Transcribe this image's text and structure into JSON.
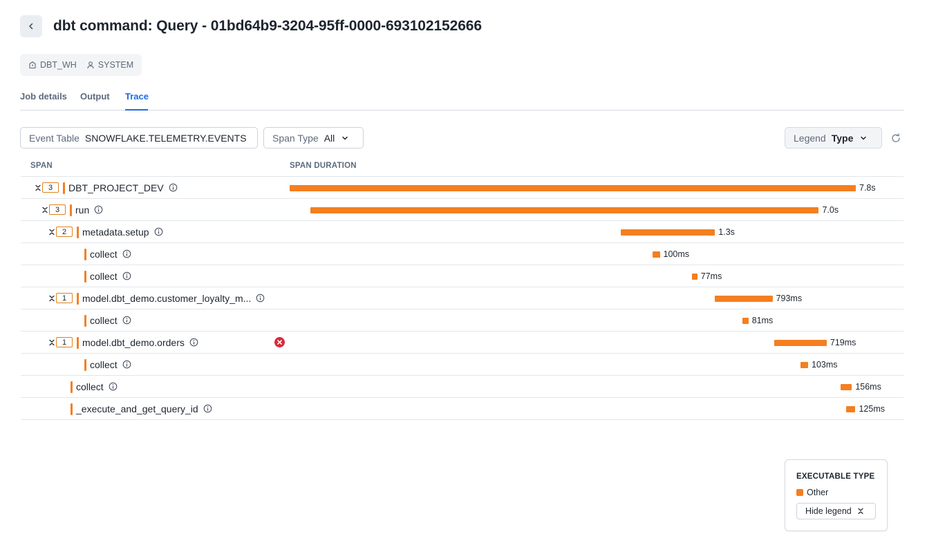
{
  "header": {
    "title": "dbt command: Query - 01bd64b9-3204-95ff-0000-693102152666",
    "warehouse": "DBT_WH",
    "user": "SYSTEM"
  },
  "tabs": [
    {
      "label": "Job details",
      "active": false
    },
    {
      "label": "Output",
      "active": false
    },
    {
      "label": "Trace",
      "active": true
    }
  ],
  "filters": {
    "event_table_label": "Event Table",
    "event_table_value": "SNOWFLAKE.TELEMETRY.EVENTS",
    "span_type_label": "Span Type",
    "span_type_value": "All",
    "legend_label": "Legend",
    "legend_value": "Type"
  },
  "columns": {
    "span": "SPAN",
    "duration": "SPAN DURATION"
  },
  "trace": {
    "total_seconds": 7.8,
    "spans": [
      {
        "name": "DBT_PROJECT_DEV",
        "depth": 0,
        "children": "3",
        "start": 0.0,
        "duration_s": 7.8,
        "duration": "7.8s",
        "error": false
      },
      {
        "name": "run",
        "depth": 1,
        "children": "3",
        "start": 0.29,
        "duration_s": 7.0,
        "duration": "7.0s",
        "error": false
      },
      {
        "name": "metadata.setup",
        "depth": 2,
        "children": "2",
        "start": 4.56,
        "duration_s": 1.3,
        "duration": "1.3s",
        "error": false
      },
      {
        "name": "collect",
        "depth": 3,
        "children": "",
        "start": 5.0,
        "duration_s": 0.1,
        "duration": "100ms",
        "error": false
      },
      {
        "name": "collect",
        "depth": 3,
        "children": "",
        "start": 5.54,
        "duration_s": 0.077,
        "duration": "77ms",
        "error": false
      },
      {
        "name": "model.dbt_demo.customer_loyalty_m...",
        "depth": 2,
        "children": "1",
        "start": 5.86,
        "duration_s": 0.793,
        "duration": "793ms",
        "error": false
      },
      {
        "name": "collect",
        "depth": 3,
        "children": "",
        "start": 6.24,
        "duration_s": 0.081,
        "duration": "81ms",
        "error": false
      },
      {
        "name": "model.dbt_demo.orders",
        "depth": 2,
        "children": "1",
        "start": 6.68,
        "duration_s": 0.719,
        "duration": "719ms",
        "error": true
      },
      {
        "name": "collect",
        "depth": 3,
        "children": "",
        "start": 7.04,
        "duration_s": 0.103,
        "duration": "103ms",
        "error": false
      },
      {
        "name": "collect",
        "depth": 1,
        "children": "",
        "start": 7.59,
        "duration_s": 0.156,
        "duration": "156ms",
        "error": false
      },
      {
        "name": "_execute_and_get_query_id",
        "depth": 1,
        "children": "",
        "start": 7.67,
        "duration_s": 0.125,
        "duration": "125ms",
        "error": false
      }
    ]
  },
  "legend": {
    "title": "EXECUTABLE TYPE",
    "items": [
      {
        "label": "Other",
        "color": "#f47f20"
      }
    ],
    "hide_label": "Hide legend"
  },
  "colors": {
    "accent": "#1a6ce7",
    "span_bar": "#f47f20",
    "error": "#d92b3a"
  }
}
